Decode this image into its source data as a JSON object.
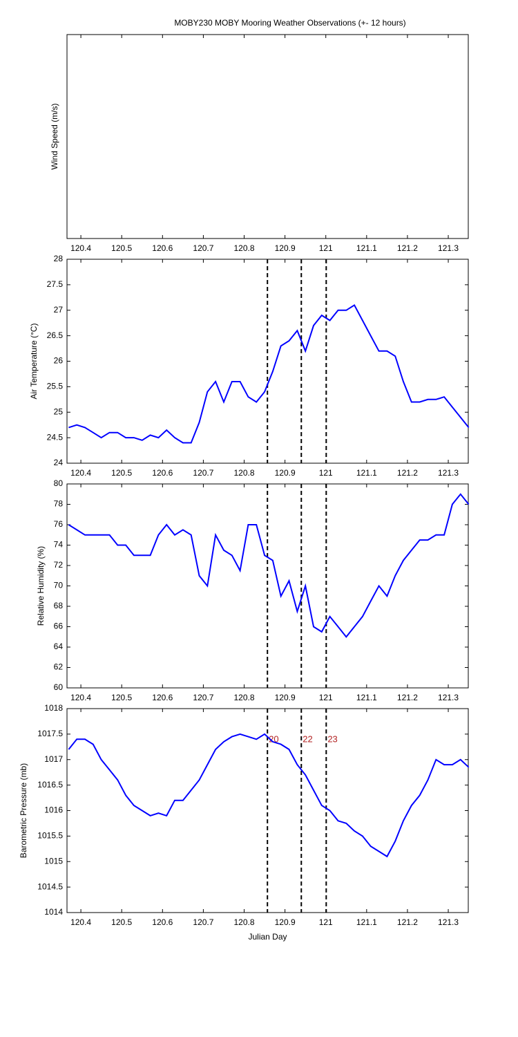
{
  "chart_data": [
    {
      "type": "line",
      "title": "MOBY230 MOBY Mooring Weather Observations (+- 12 hours)",
      "ylabel": "Wind Speed (m/s)",
      "xlim": [
        120.366,
        121.349
      ],
      "xticks": [
        120.4,
        120.5,
        120.6,
        120.7,
        120.8,
        120.9,
        121,
        121.1,
        121.2,
        121.3
      ]
    },
    {
      "type": "line",
      "ylabel": "Air Temperature (°C)",
      "color": "#0000ff",
      "xlim": [
        120.366,
        121.349
      ],
      "xticks": [
        120.4,
        120.5,
        120.6,
        120.7,
        120.8,
        120.9,
        121,
        121.1,
        121.2,
        121.3
      ],
      "ylim": [
        24,
        28
      ],
      "yticks": [
        24,
        24.5,
        25,
        25.5,
        26,
        26.5,
        27,
        27.5,
        28
      ],
      "x": [
        120.37,
        120.39,
        120.41,
        120.43,
        120.45,
        120.47,
        120.49,
        120.51,
        120.53,
        120.55,
        120.57,
        120.59,
        120.61,
        120.63,
        120.65,
        120.67,
        120.69,
        120.71,
        120.73,
        120.75,
        120.77,
        120.79,
        120.81,
        120.83,
        120.85,
        120.87,
        120.89,
        120.91,
        120.93,
        120.95,
        120.97,
        120.99,
        121.01,
        121.03,
        121.05,
        121.07,
        121.09,
        121.11,
        121.13,
        121.15,
        121.17,
        121.19,
        121.21,
        121.23,
        121.25,
        121.27,
        121.29,
        121.31,
        121.33,
        121.35
      ],
      "values": [
        24.7,
        24.75,
        24.7,
        24.6,
        24.5,
        24.6,
        24.6,
        24.5,
        24.5,
        24.45,
        24.55,
        24.5,
        24.65,
        24.5,
        24.4,
        24.4,
        24.8,
        25.4,
        25.6,
        25.2,
        25.6,
        25.6,
        25.3,
        25.2,
        25.4,
        25.8,
        26.3,
        26.4,
        26.6,
        26.2,
        26.7,
        26.9,
        26.8,
        27.0,
        27.0,
        27.1,
        26.8,
        26.5,
        26.2,
        26.2,
        26.1,
        25.6,
        25.2,
        25.2,
        25.25,
        25.25,
        25.3,
        25.1,
        24.9,
        24.7
      ]
    },
    {
      "type": "line",
      "ylabel": "Relative Humidity (%)",
      "color": "#0000ff",
      "xlim": [
        120.366,
        121.349
      ],
      "xticks": [
        120.4,
        120.5,
        120.6,
        120.7,
        120.8,
        120.9,
        121,
        121.1,
        121.2,
        121.3
      ],
      "ylim": [
        60,
        80
      ],
      "yticks": [
        60,
        62,
        64,
        66,
        68,
        70,
        72,
        74,
        76,
        78,
        80
      ],
      "x": [
        120.37,
        120.39,
        120.41,
        120.43,
        120.45,
        120.47,
        120.49,
        120.51,
        120.53,
        120.55,
        120.57,
        120.59,
        120.61,
        120.63,
        120.65,
        120.67,
        120.69,
        120.71,
        120.73,
        120.75,
        120.77,
        120.79,
        120.81,
        120.83,
        120.85,
        120.87,
        120.89,
        120.91,
        120.93,
        120.95,
        120.97,
        120.99,
        121.01,
        121.03,
        121.05,
        121.07,
        121.09,
        121.11,
        121.13,
        121.15,
        121.17,
        121.19,
        121.21,
        121.23,
        121.25,
        121.27,
        121.29,
        121.31,
        121.33,
        121.35
      ],
      "values": [
        76,
        75.5,
        75,
        75,
        75,
        75,
        74,
        74,
        73,
        73,
        73,
        75,
        76,
        75,
        75.5,
        75,
        71,
        70,
        75,
        73.5,
        73,
        71.5,
        76,
        76,
        73,
        72.5,
        69,
        70.5,
        67.5,
        70,
        66,
        65.5,
        67,
        66,
        65,
        66,
        67,
        68.5,
        70,
        69,
        71,
        72.5,
        73.5,
        74.5,
        74.5,
        75,
        75,
        78,
        79,
        78
      ]
    },
    {
      "type": "line",
      "ylabel": "Barometric Pressure (mb)",
      "xlabel": "Julian Day",
      "color": "#0000ff",
      "xlim": [
        120.366,
        121.349
      ],
      "xticks": [
        120.4,
        120.5,
        120.6,
        120.7,
        120.8,
        120.9,
        121,
        121.1,
        121.2,
        121.3
      ],
      "ylim": [
        1014,
        1018
      ],
      "yticks": [
        1014,
        1014.5,
        1015,
        1015.5,
        1016,
        1016.5,
        1017,
        1017.5,
        1018
      ],
      "x": [
        120.37,
        120.39,
        120.41,
        120.43,
        120.45,
        120.47,
        120.49,
        120.51,
        120.53,
        120.55,
        120.57,
        120.59,
        120.61,
        120.63,
        120.65,
        120.67,
        120.69,
        120.71,
        120.73,
        120.75,
        120.77,
        120.79,
        120.81,
        120.83,
        120.85,
        120.87,
        120.89,
        120.91,
        120.93,
        120.95,
        120.97,
        120.99,
        121.01,
        121.03,
        121.05,
        121.07,
        121.09,
        121.11,
        121.13,
        121.15,
        121.17,
        121.19,
        121.21,
        121.23,
        121.25,
        121.27,
        121.29,
        121.31,
        121.33,
        121.35
      ],
      "values": [
        1017.2,
        1017.4,
        1017.4,
        1017.3,
        1017.0,
        1016.8,
        1016.6,
        1016.3,
        1016.1,
        1016.0,
        1015.9,
        1015.95,
        1015.9,
        1016.2,
        1016.2,
        1016.4,
        1016.6,
        1016.9,
        1017.2,
        1017.35,
        1017.45,
        1017.5,
        1017.45,
        1017.4,
        1017.5,
        1017.35,
        1017.3,
        1017.2,
        1016.9,
        1016.7,
        1016.4,
        1016.1,
        1016.0,
        1015.8,
        1015.75,
        1015.6,
        1015.5,
        1015.3,
        1015.2,
        1015.1,
        1015.4,
        1015.8,
        1016.1,
        1016.3,
        1016.6,
        1017.0,
        1016.9,
        1016.9,
        1017.0,
        1016.85
      ]
    }
  ],
  "events": {
    "x": [
      120.857,
      120.94,
      121.001
    ],
    "labels": [
      "20",
      "22",
      "23"
    ]
  }
}
